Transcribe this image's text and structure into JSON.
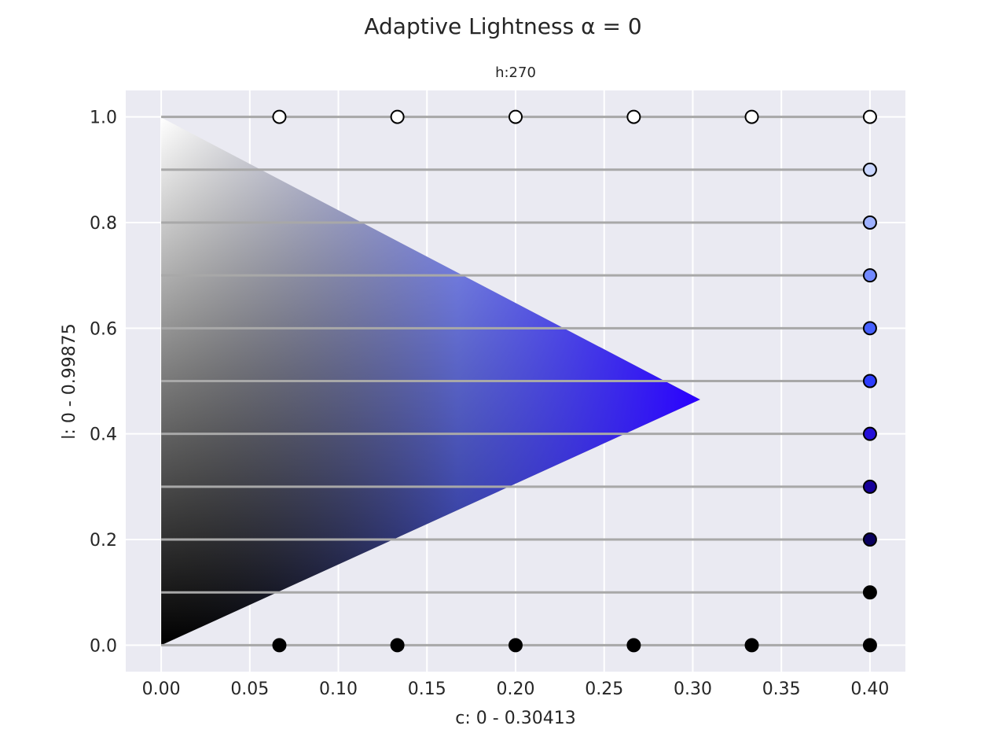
{
  "chart_data": {
    "type": "scatter",
    "title": "Adaptive Lightness α = 0",
    "subtitle": "h:270",
    "xlabel": "c: 0 - 0.30413",
    "ylabel": "l: 0 - 0.99875",
    "xlim": [
      -0.02,
      0.42
    ],
    "ylim": [
      -0.05,
      1.05
    ],
    "xticks": [
      0.0,
      0.05,
      0.1,
      0.15,
      0.2,
      0.25,
      0.3,
      0.35,
      0.4
    ],
    "xtick_labels": [
      "0.00",
      "0.05",
      "0.10",
      "0.15",
      "0.20",
      "0.25",
      "0.30",
      "0.35",
      "0.40"
    ],
    "yticks": [
      0.0,
      0.2,
      0.4,
      0.6,
      0.8,
      1.0
    ],
    "ytick_labels": [
      "0.0",
      "0.2",
      "0.4",
      "0.6",
      "0.8",
      "1.0"
    ],
    "grid": true,
    "background": "#eaeaf2",
    "gamut": {
      "hue": 270,
      "cusp_c": 0.30413,
      "cusp_l": 0.465,
      "l_max": 0.99875,
      "colors": {
        "white": "#ffffff",
        "black": "#000000",
        "cusp": "#2a00ff",
        "light_blue": "#c8d4ff",
        "mid_blue": "#6a86ff"
      }
    },
    "lines": {
      "l_values": [
        0.0,
        0.1,
        0.2,
        0.3,
        0.4,
        0.5,
        0.6,
        0.7,
        0.8,
        0.9,
        1.0
      ],
      "x_range": [
        0.0,
        0.4
      ],
      "color": "#a8a8a8"
    },
    "series": [
      {
        "x": [
          0.0667,
          0.1333,
          0.2,
          0.2667,
          0.3333,
          0.4
        ],
        "y": [
          1.0,
          1.0,
          1.0,
          1.0,
          1.0,
          1.0
        ],
        "colors": [
          "#ffffff",
          "#ffffff",
          "#ffffff",
          "#ffffff",
          "#ffffff",
          "#ffffff"
        ]
      },
      {
        "x": [
          0.4,
          0.4,
          0.4,
          0.4,
          0.4,
          0.4,
          0.4,
          0.4,
          0.4
        ],
        "y": [
          0.9,
          0.8,
          0.7,
          0.6,
          0.5,
          0.4,
          0.3,
          0.2,
          0.1
        ],
        "colors": [
          "#c9d6ff",
          "#9eb1ff",
          "#7289ff",
          "#4660ff",
          "#2d3dff",
          "#2410d8",
          "#16009a",
          "#09005e",
          "#000000"
        ]
      },
      {
        "x": [
          0.0667,
          0.1333,
          0.2,
          0.2667,
          0.3333,
          0.4
        ],
        "y": [
          0.0,
          0.0,
          0.0,
          0.0,
          0.0,
          0.0
        ],
        "colors": [
          "#000000",
          "#000000",
          "#000000",
          "#000000",
          "#000000",
          "#000000"
        ]
      }
    ]
  }
}
